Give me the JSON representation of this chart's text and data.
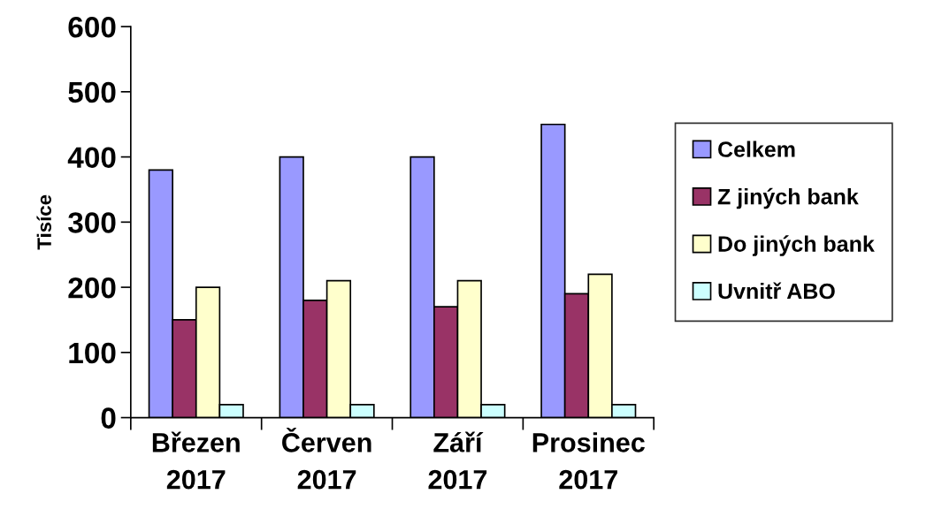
{
  "chart_data": {
    "type": "bar",
    "ylabel": "Tisíce",
    "categories": [
      "Březen 2017",
      "Červen 2017",
      "Září 2017",
      "Prosinec 2017"
    ],
    "series": [
      {
        "name": "Celkem",
        "color": "#9999ff",
        "values": [
          380,
          400,
          400,
          450
        ]
      },
      {
        "name": "Z jiných bank",
        "color": "#993366",
        "values": [
          150,
          180,
          170,
          190
        ]
      },
      {
        "name": "Do jiných bank",
        "color": "#ffffcc",
        "values": [
          200,
          210,
          210,
          220
        ]
      },
      {
        "name": "Uvnitř ABO",
        "color": "#ccffff",
        "values": [
          20,
          20,
          20,
          20
        ]
      }
    ],
    "ylim": [
      0,
      600
    ],
    "yticks": [
      0,
      100,
      200,
      300,
      400,
      500,
      600
    ],
    "grid": false,
    "legend": "right"
  }
}
